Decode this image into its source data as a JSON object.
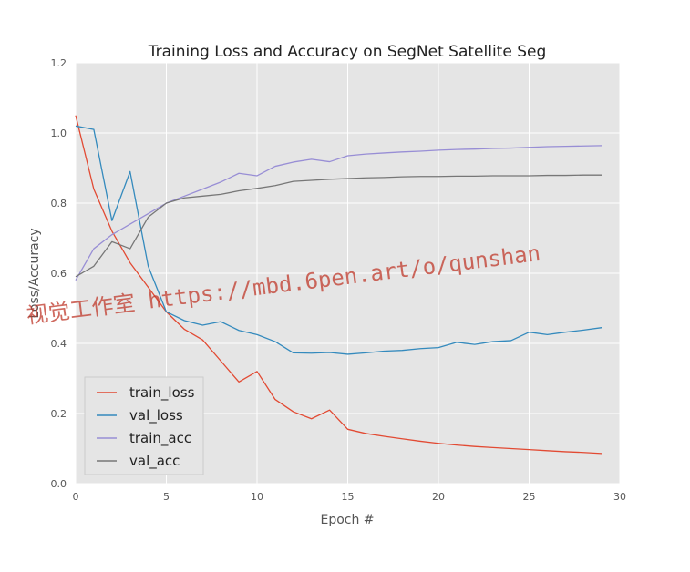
{
  "chart_data": {
    "type": "line",
    "title": "Training Loss and Accuracy on SegNet Satellite Seg",
    "xlabel": "Epoch #",
    "ylabel": "Loss/Accuracy",
    "xlim": [
      0,
      30
    ],
    "ylim": [
      0.0,
      1.2
    ],
    "xticks": [
      "0",
      "5",
      "10",
      "15",
      "20",
      "25",
      "30"
    ],
    "yticks": [
      "0.0",
      "0.2",
      "0.4",
      "0.6",
      "0.8",
      "1.0",
      "1.2"
    ],
    "grid": true,
    "legend_position": "lower-left",
    "x": [
      0,
      1,
      2,
      3,
      4,
      5,
      6,
      7,
      8,
      9,
      10,
      11,
      12,
      13,
      14,
      15,
      16,
      17,
      18,
      19,
      20,
      21,
      22,
      23,
      24,
      25,
      26,
      27,
      28,
      29
    ],
    "series": [
      {
        "name": "train_loss",
        "color": "#e24a33",
        "values": [
          1.05,
          0.84,
          0.72,
          0.63,
          0.56,
          0.49,
          0.44,
          0.41,
          0.35,
          0.29,
          0.32,
          0.24,
          0.205,
          0.185,
          0.21,
          0.155,
          0.143,
          0.135,
          0.128,
          0.121,
          0.115,
          0.11,
          0.106,
          0.103,
          0.1,
          0.097,
          0.094,
          0.091,
          0.089,
          0.086
        ]
      },
      {
        "name": "val_loss",
        "color": "#348abd",
        "values": [
          1.02,
          1.01,
          0.75,
          0.89,
          0.62,
          0.49,
          0.465,
          0.452,
          0.462,
          0.437,
          0.425,
          0.405,
          0.373,
          0.372,
          0.374,
          0.369,
          0.373,
          0.378,
          0.38,
          0.385,
          0.388,
          0.403,
          0.397,
          0.405,
          0.408,
          0.432,
          0.425,
          0.432,
          0.438,
          0.445
        ]
      },
      {
        "name": "train_acc",
        "color": "#988ed5",
        "values": [
          0.58,
          0.67,
          0.71,
          0.74,
          0.77,
          0.8,
          0.82,
          0.84,
          0.86,
          0.885,
          0.878,
          0.905,
          0.917,
          0.925,
          0.918,
          0.935,
          0.94,
          0.943,
          0.946,
          0.948,
          0.951,
          0.953,
          0.954,
          0.956,
          0.957,
          0.959,
          0.961,
          0.962,
          0.963,
          0.964
        ]
      },
      {
        "name": "val_acc",
        "color": "#777777",
        "values": [
          0.59,
          0.62,
          0.69,
          0.67,
          0.76,
          0.8,
          0.815,
          0.82,
          0.825,
          0.835,
          0.842,
          0.85,
          0.862,
          0.865,
          0.868,
          0.87,
          0.872,
          0.873,
          0.875,
          0.876,
          0.876,
          0.877,
          0.877,
          0.878,
          0.878,
          0.878,
          0.879,
          0.879,
          0.88,
          0.88
        ]
      }
    ]
  },
  "watermark": {
    "text": "视觉工作室 https://mbd.6pen.art/o/qunshan"
  }
}
